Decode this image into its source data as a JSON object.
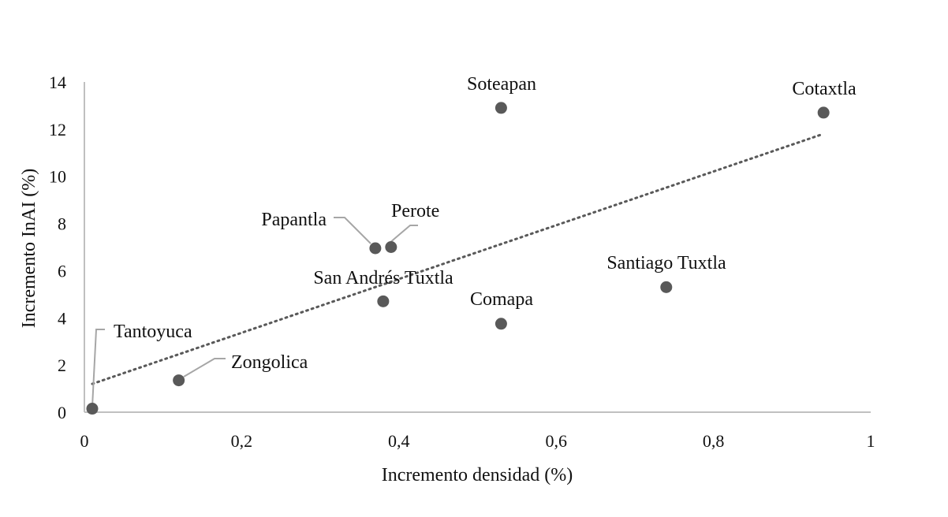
{
  "chart_data": {
    "type": "scatter",
    "xlabel": "Incremento densidad (%)",
    "ylabel": "Incremento InAI (%)",
    "xlim": [
      0,
      1
    ],
    "ylim": [
      0,
      14
    ],
    "x_ticks": [
      "0",
      "0,2",
      "0,4",
      "0,6",
      "0,8",
      "1"
    ],
    "y_ticks": [
      "0",
      "2",
      "4",
      "6",
      "8",
      "10",
      "12",
      "14"
    ],
    "grid": false,
    "legend": "none",
    "trendline": {
      "type": "linear",
      "style": "dotted",
      "from": [
        0.01,
        1.2
      ],
      "to": [
        0.94,
        11.8
      ]
    },
    "points": [
      {
        "name": "Tantoyuca",
        "x": 0.01,
        "y": 0.15
      },
      {
        "name": "Zongolica",
        "x": 0.12,
        "y": 1.35
      },
      {
        "name": "Papantla",
        "x": 0.37,
        "y": 6.95
      },
      {
        "name": "Perote",
        "x": 0.39,
        "y": 7.0
      },
      {
        "name": "San Andrés Tuxtla",
        "x": 0.38,
        "y": 4.7
      },
      {
        "name": "Soteapan",
        "x": 0.53,
        "y": 12.9
      },
      {
        "name": "Comapa",
        "x": 0.53,
        "y": 3.75
      },
      {
        "name": "Santiago Tuxtla",
        "x": 0.74,
        "y": 5.3
      },
      {
        "name": "Cotaxtla",
        "x": 0.94,
        "y": 12.7
      }
    ],
    "colors": {
      "points": "#595959",
      "axis": "#c0c0c0",
      "trend": "#595959",
      "leader": "#a6a6a6"
    }
  }
}
